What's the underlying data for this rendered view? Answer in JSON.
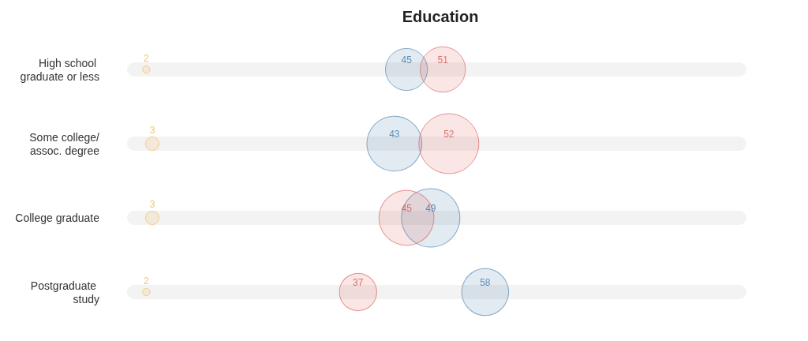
{
  "chart_data": {
    "type": "bubble",
    "title": "Education",
    "categories": [
      "High school graduate or less",
      "Some college/assoc. degree",
      "College graduate",
      "Postgraduate study"
    ],
    "orientation": "horizontal",
    "xlim": [
      0,
      100
    ],
    "series": [
      {
        "color": "#3b77a6",
        "values": [
          45,
          43,
          49,
          58
        ],
        "sizes": [
          0.49,
          0.84,
          0.95,
          0.61
        ]
      },
      {
        "color": "#d9534f",
        "values": [
          51,
          52,
          45,
          37
        ],
        "sizes": [
          0.57,
          1,
          0.84,
          0.39
        ]
      },
      {
        "color": "#f0b54a",
        "values": [
          2,
          3,
          3,
          2
        ],
        "sizes": [
          0.015,
          0.05,
          0.05,
          0.015
        ]
      }
    ],
    "data_labels": true,
    "grid": "y",
    "tick_labels": "y"
  }
}
